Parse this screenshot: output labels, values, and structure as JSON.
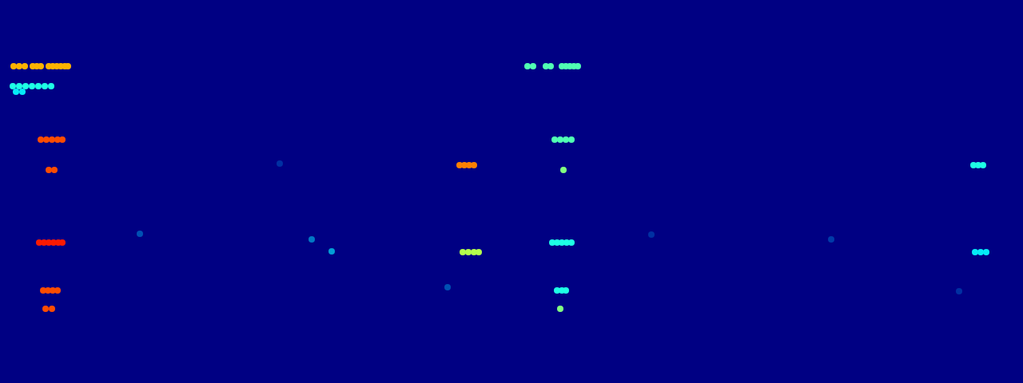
{
  "chart_data": {
    "type": "scatter",
    "x": [
      17,
      24,
      31,
      41,
      46,
      51,
      61,
      66,
      71,
      76,
      81,
      85,
      16,
      24,
      32,
      40,
      48,
      56,
      64,
      20,
      28,
      51,
      58,
      65,
      72,
      78,
      61,
      68,
      49,
      55,
      61,
      67,
      73,
      78,
      54,
      60,
      66,
      72,
      57,
      65,
      575,
      581,
      587,
      593,
      579,
      586,
      593,
      599,
      660,
      667,
      683,
      689,
      703,
      708,
      713,
      718,
      723,
      694,
      701,
      708,
      715,
      705,
      691,
      697,
      703,
      709,
      715,
      697,
      703,
      708,
      701,
      1218,
      1224,
      1230,
      1220,
      1227,
      1234,
      415,
      390,
      560,
      175,
      815,
      1040,
      1200,
      350
    ],
    "y": [
      83,
      83,
      83,
      83,
      83,
      83,
      83,
      83,
      83,
      83,
      83,
      83,
      108,
      108,
      108,
      108,
      108,
      108,
      108,
      115,
      115,
      175,
      175,
      175,
      175,
      175,
      213,
      213,
      304,
      304,
      304,
      304,
      304,
      304,
      364,
      364,
      364,
      364,
      387,
      387,
      207,
      207,
      207,
      207,
      316,
      316,
      316,
      316,
      83,
      83,
      83,
      83,
      83,
      83,
      83,
      83,
      83,
      175,
      175,
      175,
      175,
      213,
      304,
      304,
      304,
      304,
      304,
      364,
      364,
      364,
      387,
      207,
      207,
      207,
      316,
      316,
      316,
      315,
      300,
      360,
      293,
      294,
      300,
      365,
      205
    ],
    "values": [
      0.7,
      0.7,
      0.7,
      0.7,
      0.7,
      0.7,
      0.7,
      0.7,
      0.7,
      0.7,
      0.7,
      0.7,
      0.4,
      0.4,
      0.4,
      0.4,
      0.4,
      0.4,
      0.4,
      0.35,
      0.35,
      0.8,
      0.8,
      0.8,
      0.8,
      0.8,
      0.8,
      0.8,
      0.85,
      0.85,
      0.85,
      0.85,
      0.85,
      0.85,
      0.8,
      0.8,
      0.8,
      0.8,
      0.8,
      0.8,
      0.75,
      0.75,
      0.75,
      0.75,
      0.55,
      0.55,
      0.55,
      0.55,
      0.45,
      0.45,
      0.45,
      0.45,
      0.45,
      0.45,
      0.45,
      0.45,
      0.45,
      0.45,
      0.45,
      0.45,
      0.45,
      0.5,
      0.4,
      0.4,
      0.4,
      0.4,
      0.4,
      0.4,
      0.4,
      0.4,
      0.5,
      0.4,
      0.4,
      0.4,
      0.35,
      0.35,
      0.35,
      0.25,
      0.2,
      0.15,
      0.15,
      0.1,
      0.12,
      0.1,
      0.1
    ],
    "xlim": [
      0,
      1280
    ],
    "ylim": [
      480,
      0
    ],
    "zlim": [
      0,
      1
    ],
    "marker": "circle",
    "tick_labels": false,
    "grid": false
  }
}
